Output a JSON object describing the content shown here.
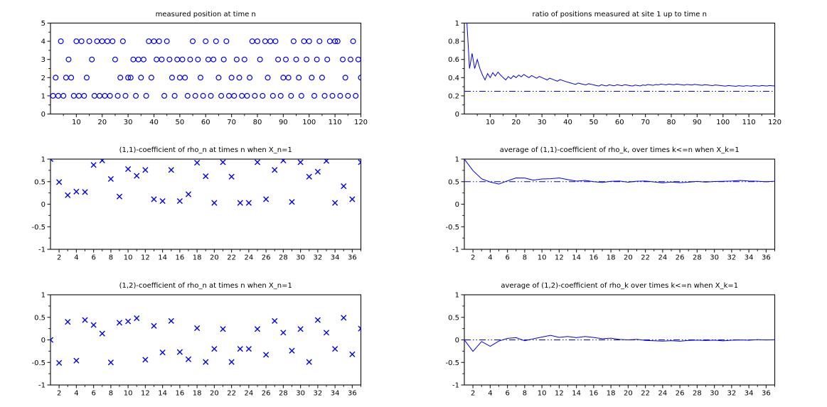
{
  "figure": {
    "background": "#ffffff",
    "axis_color": "#1a1a1a",
    "series_color": "#0000ee",
    "tick_label_color": "#000000"
  },
  "chart_data": [
    {
      "type": "scatter",
      "marker": "circle",
      "title": "measured position at time n",
      "xlabel": "",
      "ylabel": "",
      "xlim": [
        0,
        120
      ],
      "ylim": [
        0,
        5
      ],
      "xticks": [
        10,
        20,
        30,
        40,
        50,
        60,
        70,
        80,
        90,
        100,
        110,
        120
      ],
      "xminor_step": 5,
      "yticks": [
        0,
        1,
        2,
        3,
        4,
        5
      ],
      "ylabels": [
        "0",
        "1",
        "2",
        "3",
        "4",
        "5"
      ],
      "yminor_step": 0.5,
      "grid": false,
      "x_start": 1,
      "values": [
        1,
        2,
        1,
        4,
        1,
        2,
        3,
        2,
        1,
        4,
        1,
        4,
        1,
        2,
        4,
        3,
        1,
        4,
        1,
        4,
        1,
        4,
        1,
        4,
        3,
        1,
        2,
        4,
        1,
        2,
        2,
        3,
        1,
        3,
        2,
        3,
        1,
        4,
        2,
        4,
        3,
        4,
        3,
        1,
        4,
        3,
        2,
        1,
        3,
        2,
        3,
        2,
        1,
        3,
        4,
        1,
        3,
        2,
        1,
        4,
        3,
        1,
        3,
        4,
        2,
        1,
        3,
        4,
        1,
        2,
        1,
        3,
        2,
        1,
        3,
        1,
        2,
        4,
        1,
        4,
        3,
        1,
        4,
        2,
        4,
        1,
        4,
        3,
        1,
        2,
        3,
        2,
        1,
        4,
        3,
        2,
        1,
        4,
        3,
        4,
        2,
        1,
        3,
        4,
        2,
        1,
        3,
        4,
        1,
        4,
        4,
        1,
        3,
        2,
        1,
        3,
        4,
        1,
        3,
        2
      ]
    },
    {
      "type": "line",
      "title": "ratio of positions measured at site 1 up to time n",
      "xlabel": "",
      "ylabel": "",
      "xlim": [
        0,
        120
      ],
      "ylim": [
        0,
        1
      ],
      "xticks": [
        10,
        20,
        30,
        40,
        50,
        60,
        70,
        80,
        90,
        100,
        110,
        120
      ],
      "xminor_step": 5,
      "yticks": [
        0,
        0.2,
        0.4,
        0.6,
        0.8,
        1
      ],
      "ylabels": [
        "0",
        "0.2",
        "0.4",
        "0.6",
        "0.8",
        "1"
      ],
      "yminor_step": 0.1,
      "grid": false,
      "derive": "running_ratio_of_site1",
      "source_chart": 0,
      "site_value": 1,
      "final_value": 0.308,
      "ref_line": 0.25,
      "ref_style": "dash-dot"
    },
    {
      "type": "scatter",
      "marker": "x",
      "title": "(1,1)-coefficient of rho_n at times n when X_n=1",
      "xlabel": "",
      "ylabel": "",
      "xlim": [
        1,
        37
      ],
      "ylim": [
        -1,
        1
      ],
      "xticks": [
        2,
        4,
        6,
        8,
        10,
        12,
        14,
        16,
        18,
        20,
        22,
        24,
        26,
        28,
        30,
        32,
        34,
        36
      ],
      "xminor_step": 1,
      "yticks": [
        -1,
        -0.5,
        0,
        0.5,
        1
      ],
      "ylabels": [
        "-1",
        "-0.5",
        "0",
        "0.5",
        "1"
      ],
      "yminor_step": 0.25,
      "grid": false,
      "x_start": 1,
      "values": [
        1.0,
        0.49,
        0.2,
        0.28,
        0.27,
        0.87,
        0.97,
        0.56,
        0.17,
        0.78,
        0.63,
        0.76,
        0.11,
        0.07,
        0.76,
        0.07,
        0.22,
        0.92,
        0.62,
        0.03,
        0.93,
        0.61,
        0.03,
        0.03,
        0.93,
        0.11,
        0.76,
        0.97,
        0.05,
        0.93,
        0.61,
        0.72,
        0.96,
        0.03,
        0.4,
        0.11,
        0.93
      ]
    },
    {
      "type": "line",
      "title": "average of (1,1)-coefficient of rho_k, over times k<=n when X_k=1",
      "xlabel": "",
      "ylabel": "",
      "xlim": [
        1,
        37
      ],
      "ylim": [
        -1,
        1
      ],
      "xticks": [
        2,
        4,
        6,
        8,
        10,
        12,
        14,
        16,
        18,
        20,
        22,
        24,
        26,
        28,
        30,
        32,
        34,
        36
      ],
      "xminor_step": 1,
      "yticks": [
        -1,
        -0.5,
        0,
        0.5,
        1
      ],
      "ylabels": [
        "-1",
        "-0.5",
        "0",
        "0.5",
        "1"
      ],
      "yminor_step": 0.25,
      "grid": false,
      "derive": "running_average",
      "source_chart": 2,
      "final_value": 0.51,
      "ref_line": 0.5,
      "ref_style": "dash-dot"
    },
    {
      "type": "scatter",
      "marker": "x",
      "title": "(1,2)-coefficient of rho_n at times n when X_n=1",
      "xlabel": "",
      "ylabel": "",
      "xlim": [
        1,
        37
      ],
      "ylim": [
        -1,
        1
      ],
      "xticks": [
        2,
        4,
        6,
        8,
        10,
        12,
        14,
        16,
        18,
        20,
        22,
        24,
        26,
        28,
        30,
        32,
        34,
        36
      ],
      "xminor_step": 1,
      "yticks": [
        -1,
        -0.5,
        0,
        0.5,
        1
      ],
      "ylabels": [
        "-1",
        "-0.5",
        "0",
        "0.5",
        "1"
      ],
      "yminor_step": 0.25,
      "grid": false,
      "x_start": 1,
      "values": [
        0.0,
        -0.51,
        0.4,
        -0.46,
        0.44,
        0.33,
        0.14,
        -0.5,
        0.38,
        0.41,
        0.48,
        -0.44,
        0.31,
        -0.28,
        0.42,
        -0.27,
        -0.43,
        0.26,
        -0.49,
        -0.2,
        0.24,
        -0.49,
        -0.2,
        -0.2,
        0.24,
        -0.33,
        0.42,
        0.16,
        -0.24,
        0.24,
        -0.49,
        0.44,
        0.16,
        -0.2,
        0.49,
        -0.32,
        0.25
      ]
    },
    {
      "type": "line",
      "title": "average of (1,2)-coefficient of rho_k over times k<=n when X_k=1",
      "xlabel": "",
      "ylabel": "",
      "xlim": [
        1,
        37
      ],
      "ylim": [
        -1,
        1
      ],
      "xticks": [
        2,
        4,
        6,
        8,
        10,
        12,
        14,
        16,
        18,
        20,
        22,
        24,
        26,
        28,
        30,
        32,
        34,
        36
      ],
      "xminor_step": 1,
      "yticks": [
        -1,
        -0.5,
        0,
        0.5,
        1
      ],
      "ylabels": [
        "-1",
        "-0.5",
        "0",
        "0.5",
        "1"
      ],
      "yminor_step": 0.25,
      "grid": false,
      "derive": "running_average",
      "source_chart": 4,
      "final_value": 0.004,
      "ref_line": 0,
      "ref_style": "dash-dot"
    }
  ]
}
